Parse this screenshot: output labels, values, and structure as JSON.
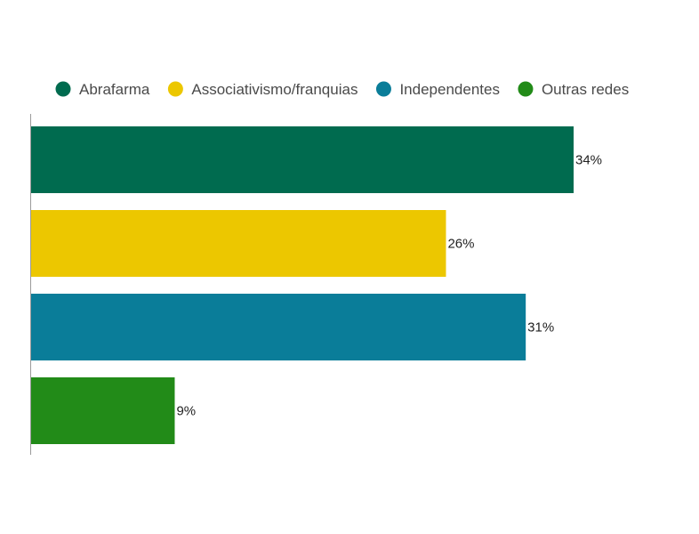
{
  "chart_data": {
    "type": "bar",
    "orientation": "horizontal",
    "title": "",
    "xlabel": "",
    "ylabel": "",
    "xlim": [
      0,
      34
    ],
    "grid": false,
    "legend_position": "top",
    "value_suffix": "%",
    "series": [
      {
        "name": "Abrafarma",
        "value": 34,
        "value_label": "34%",
        "color": "#006B4F"
      },
      {
        "name": "Associativismo/franquias",
        "value": 26,
        "value_label": "26%",
        "color": "#ECC700"
      },
      {
        "name": "Independentes",
        "value": 31,
        "value_label": "31%",
        "color": "#0A7D99"
      },
      {
        "name": "Outras redes",
        "value": 9,
        "value_label": "9%",
        "color": "#228B18"
      }
    ]
  }
}
